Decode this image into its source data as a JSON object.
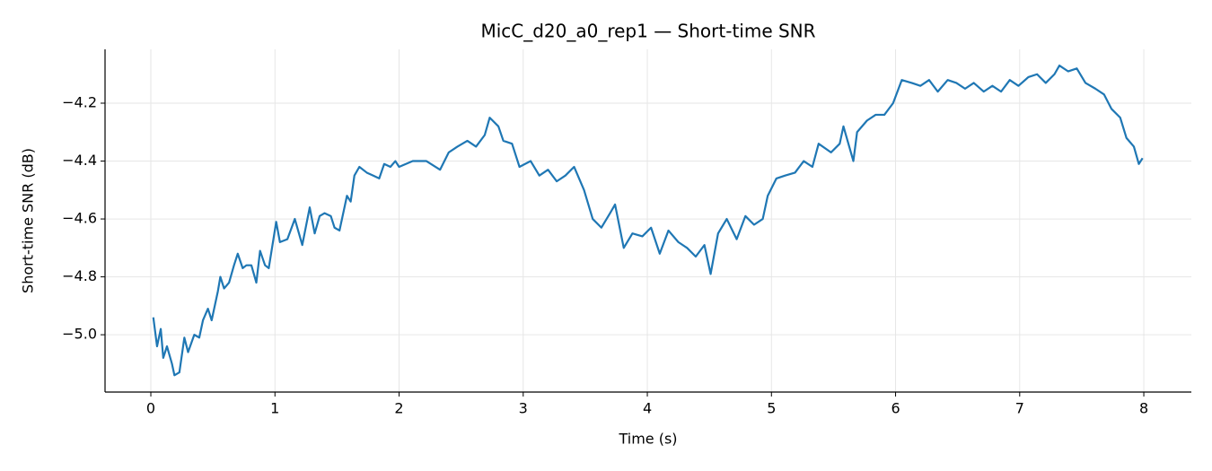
{
  "chart_data": {
    "type": "line",
    "title": "MicC_d20_a0_rep1 — Short-time SNR",
    "xlabel": "Time (s)",
    "ylabel": "Short-time SNR (dB)",
    "x": [
      0.02,
      0.05,
      0.08,
      0.1,
      0.13,
      0.17,
      0.19,
      0.23,
      0.27,
      0.3,
      0.35,
      0.39,
      0.42,
      0.46,
      0.49,
      0.54,
      0.56,
      0.59,
      0.63,
      0.67,
      0.7,
      0.74,
      0.77,
      0.81,
      0.85,
      0.88,
      0.92,
      0.95,
      1.01,
      1.04,
      1.1,
      1.16,
      1.22,
      1.28,
      1.32,
      1.36,
      1.4,
      1.45,
      1.48,
      1.52,
      1.58,
      1.61,
      1.64,
      1.68,
      1.74,
      1.79,
      1.84,
      1.88,
      1.93,
      1.97,
      2.0,
      2.11,
      2.22,
      2.33,
      2.4,
      2.47,
      2.55,
      2.62,
      2.69,
      2.73,
      2.8,
      2.84,
      2.91,
      2.97,
      3.06,
      3.13,
      3.2,
      3.27,
      3.34,
      3.41,
      3.49,
      3.56,
      3.63,
      3.7,
      3.74,
      3.81,
      3.88,
      3.96,
      4.03,
      4.1,
      4.17,
      4.25,
      4.32,
      4.39,
      4.46,
      4.51,
      4.57,
      4.64,
      4.72,
      4.79,
      4.86,
      4.93,
      4.97,
      5.04,
      5.11,
      5.19,
      5.26,
      5.33,
      5.38,
      5.48,
      5.55,
      5.58,
      5.66,
      5.69,
      5.77,
      5.84,
      5.91,
      5.98,
      6.05,
      6.13,
      6.2,
      6.27,
      6.34,
      6.42,
      6.49,
      6.56,
      6.63,
      6.71,
      6.78,
      6.85,
      6.92,
      6.99,
      7.07,
      7.14,
      7.21,
      7.28,
      7.32,
      7.39,
      7.46,
      7.53,
      7.61,
      7.68,
      7.74,
      7.81,
      7.86,
      7.92,
      7.96,
      7.99
    ],
    "series": [
      {
        "name": "SNR",
        "color": "#1f77b4",
        "values": [
          -4.94,
          -5.04,
          -4.98,
          -5.08,
          -5.04,
          -5.1,
          -5.14,
          -5.13,
          -5.01,
          -5.06,
          -5.0,
          -5.01,
          -4.95,
          -4.91,
          -4.95,
          -4.85,
          -4.8,
          -4.84,
          -4.82,
          -4.76,
          -4.72,
          -4.77,
          -4.76,
          -4.76,
          -4.82,
          -4.71,
          -4.76,
          -4.77,
          -4.61,
          -4.68,
          -4.67,
          -4.6,
          -4.69,
          -4.56,
          -4.65,
          -4.59,
          -4.58,
          -4.59,
          -4.63,
          -4.64,
          -4.52,
          -4.54,
          -4.45,
          -4.42,
          -4.44,
          -4.45,
          -4.46,
          -4.41,
          -4.42,
          -4.4,
          -4.42,
          -4.4,
          -4.4,
          -4.43,
          -4.37,
          -4.35,
          -4.33,
          -4.35,
          -4.31,
          -4.25,
          -4.28,
          -4.33,
          -4.34,
          -4.42,
          -4.4,
          -4.45,
          -4.43,
          -4.47,
          -4.45,
          -4.42,
          -4.5,
          -4.6,
          -4.63,
          -4.58,
          -4.55,
          -4.7,
          -4.65,
          -4.66,
          -4.63,
          -4.72,
          -4.64,
          -4.68,
          -4.7,
          -4.73,
          -4.69,
          -4.79,
          -4.65,
          -4.6,
          -4.67,
          -4.59,
          -4.62,
          -4.6,
          -4.52,
          -4.46,
          -4.45,
          -4.44,
          -4.4,
          -4.42,
          -4.34,
          -4.37,
          -4.34,
          -4.28,
          -4.4,
          -4.3,
          -4.26,
          -4.24,
          -4.24,
          -4.2,
          -4.12,
          -4.13,
          -4.14,
          -4.12,
          -4.16,
          -4.12,
          -4.13,
          -4.15,
          -4.13,
          -4.16,
          -4.14,
          -4.16,
          -4.12,
          -4.14,
          -4.11,
          -4.1,
          -4.13,
          -4.1,
          -4.07,
          -4.09,
          -4.08,
          -4.13,
          -4.15,
          -4.17,
          -4.22,
          -4.25,
          -4.32,
          -4.35,
          -4.41,
          -4.39
        ]
      }
    ],
    "xlim": [
      -0.369,
      8.383
    ],
    "ylim": [
      -5.198,
      -4.014
    ],
    "xticks": [
      0,
      1,
      2,
      3,
      4,
      5,
      6,
      7,
      8
    ],
    "yticks": [
      {
        "value": -5.0,
        "label": "−5.0"
      },
      {
        "value": -4.8,
        "label": "−4.8"
      },
      {
        "value": -4.6,
        "label": "−4.6"
      },
      {
        "value": -4.4,
        "label": "−4.4"
      },
      {
        "value": -4.2,
        "label": "−4.2"
      }
    ],
    "grid": true
  }
}
